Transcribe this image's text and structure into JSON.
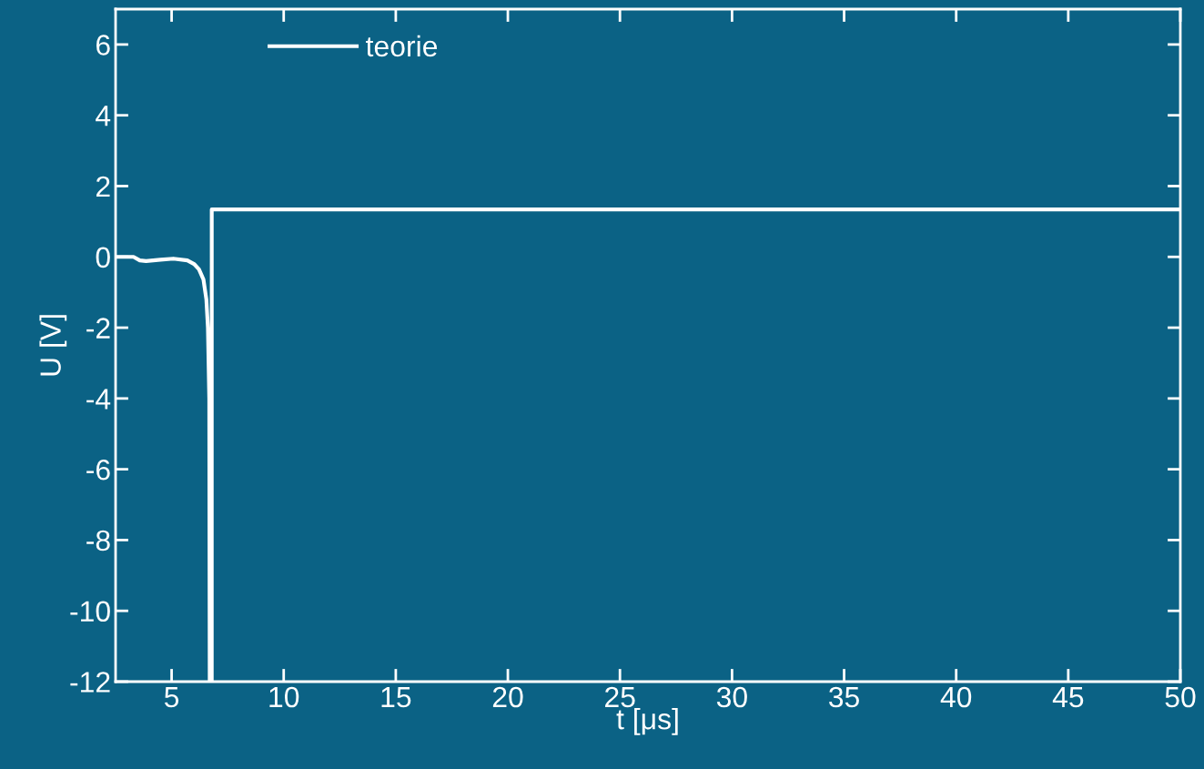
{
  "chart_data": {
    "type": "line",
    "xlabel": "t [μs]",
    "ylabel": "U [V]",
    "series": [
      {
        "name": "teorie",
        "color": "#ffffff",
        "x": [
          2.5,
          3.3,
          3.58,
          3.86,
          4.5,
          5.08,
          5.7,
          6.0,
          6.22,
          6.42,
          6.55,
          6.62,
          6.68,
          6.7,
          6.79,
          6.79,
          50
        ],
        "values": [
          0,
          0,
          -0.1,
          -0.12,
          -0.08,
          -0.05,
          -0.1,
          -0.2,
          -0.35,
          -0.64,
          -1.2,
          -2.0,
          -4.0,
          -12,
          -12,
          1.34,
          1.34
        ]
      }
    ],
    "xlim": [
      2.5,
      50
    ],
    "ylim": [
      -12,
      7
    ],
    "xticks": [
      5,
      10,
      15,
      20,
      25,
      30,
      35,
      40,
      45,
      50
    ],
    "yticks": [
      -12,
      -10,
      -8,
      -6,
      -4,
      -2,
      0,
      2,
      4,
      6
    ],
    "grid": false,
    "legend": "top left",
    "marker": "none",
    "line_style": "solid"
  }
}
